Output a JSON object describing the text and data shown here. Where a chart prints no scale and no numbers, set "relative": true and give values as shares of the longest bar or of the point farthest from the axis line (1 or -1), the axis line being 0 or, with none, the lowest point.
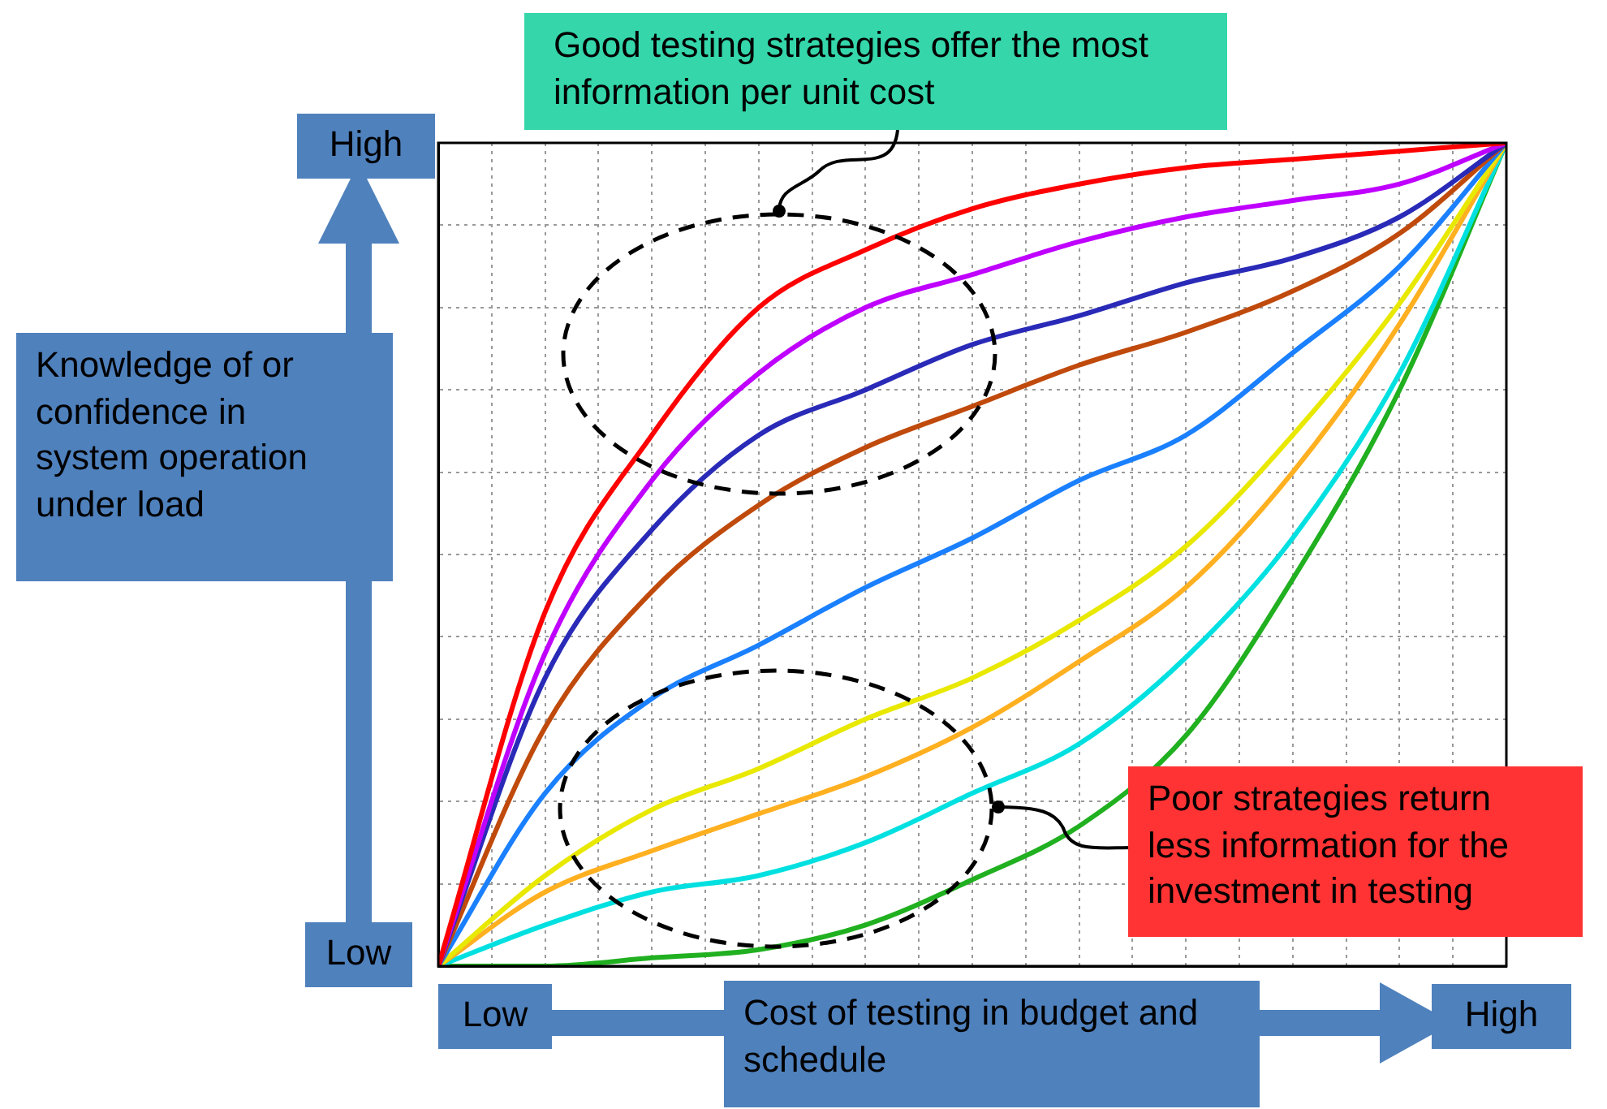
{
  "chart_data": {
    "type": "line",
    "relative": true,
    "grid": true,
    "legend": false,
    "marker": "none",
    "line_style": "solid",
    "xlabel": "Cost of testing in budget and schedule",
    "ylabel": "Knowledge of or confidence in system operation under load",
    "annotations": [
      "High",
      "Low",
      "Low",
      "High",
      "Good testing strategies offer the most information per unit cost",
      "Poor strategies return less information for the investment in testing"
    ],
    "categories": [
      null,
      null,
      null,
      null,
      null,
      null,
      null,
      null,
      null,
      null,
      null
    ],
    "series": [
      {
        "color": "#ff0000",
        "values": [
          0,
          0.43,
          0.645,
          0.8,
          0.87,
          0.92,
          0.95,
          0.97,
          0.98,
          0.99,
          1
        ]
      },
      {
        "color": "#bf00ff",
        "values": [
          0,
          0.38,
          0.59,
          0.72,
          0.8,
          0.84,
          0.88,
          0.91,
          0.93,
          0.95,
          1
        ]
      },
      {
        "color": "#2a2ab8",
        "values": [
          0,
          0.35,
          0.53,
          0.645,
          0.7,
          0.755,
          0.79,
          0.83,
          0.86,
          0.91,
          1
        ]
      },
      {
        "color": "#c04a0c",
        "values": [
          0,
          0.29,
          0.455,
          0.56,
          0.63,
          0.68,
          0.73,
          0.77,
          0.82,
          0.89,
          1
        ]
      },
      {
        "color": "#1a80ff",
        "values": [
          0,
          0.21,
          0.325,
          0.39,
          0.46,
          0.52,
          0.59,
          0.645,
          0.745,
          0.85,
          1
        ]
      },
      {
        "color": "#e8e800",
        "values": [
          0,
          0.11,
          0.19,
          0.24,
          0.3,
          0.35,
          0.42,
          0.51,
          0.645,
          0.805,
          1
        ]
      },
      {
        "color": "#ffb020",
        "values": [
          0,
          0.09,
          0.14,
          0.185,
          0.23,
          0.29,
          0.37,
          0.46,
          0.6,
          0.78,
          1
        ]
      },
      {
        "color": "#00e0e0",
        "values": [
          0,
          0.05,
          0.09,
          0.11,
          0.15,
          0.21,
          0.27,
          0.375,
          0.52,
          0.72,
          1
        ]
      },
      {
        "color": "#20b020",
        "values": [
          0,
          0,
          0.01,
          0.02,
          0.05,
          0.105,
          0.17,
          0.28,
          0.47,
          0.7,
          1
        ]
      }
    ]
  }
}
